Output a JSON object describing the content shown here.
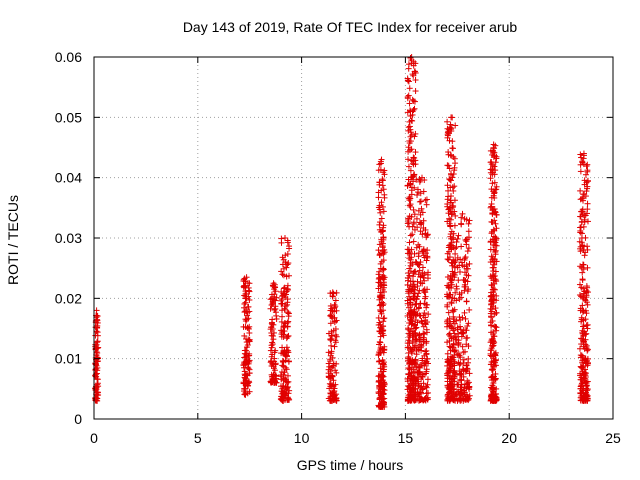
{
  "chart_data": {
    "type": "scatter",
    "title": "Day 143 of 2019, Rate Of TEC Index for receiver arub",
    "xlabel": "GPS time / hours",
    "ylabel": "ROTI / TECUs",
    "xlim": [
      0,
      25
    ],
    "ylim": [
      0,
      0.06
    ],
    "xticks": [
      0,
      5,
      10,
      15,
      20,
      25
    ],
    "xtick_labels": [
      "0",
      "5",
      "10",
      "15",
      "20",
      "25"
    ],
    "yticks": [
      0,
      0.01,
      0.02,
      0.03,
      0.04,
      0.05,
      0.06
    ],
    "ytick_labels": [
      "0",
      "0.01",
      "0.02",
      "0.03",
      "0.04",
      "0.05",
      "0.06"
    ],
    "grid": true,
    "marker": "plus",
    "color": "#e00000",
    "clusters": [
      {
        "x": [
          0.05,
          0.2
        ],
        "y": [
          0.003,
          0.018
        ]
      },
      {
        "x": [
          7.2,
          7.5
        ],
        "y": [
          0.004,
          0.0235
        ]
      },
      {
        "x": [
          8.5,
          8.8
        ],
        "y": [
          0.006,
          0.0225
        ]
      },
      {
        "x": [
          9.0,
          9.4
        ],
        "y": [
          0.003,
          0.03
        ]
      },
      {
        "x": [
          11.3,
          11.7
        ],
        "y": [
          0.003,
          0.021
        ]
      },
      {
        "x": [
          13.7,
          14.0
        ],
        "y": [
          0.002,
          0.043
        ]
      },
      {
        "x": [
          15.1,
          15.5
        ],
        "y": [
          0.003,
          0.06
        ]
      },
      {
        "x": [
          15.5,
          16.1
        ],
        "y": [
          0.003,
          0.04
        ]
      },
      {
        "x": [
          17.0,
          17.4
        ],
        "y": [
          0.003,
          0.05
        ]
      },
      {
        "x": [
          17.4,
          18.1
        ],
        "y": [
          0.003,
          0.034
        ]
      },
      {
        "x": [
          19.1,
          19.4
        ],
        "y": [
          0.003,
          0.0455
        ]
      },
      {
        "x": [
          23.4,
          23.8
        ],
        "y": [
          0.003,
          0.044
        ]
      }
    ]
  }
}
